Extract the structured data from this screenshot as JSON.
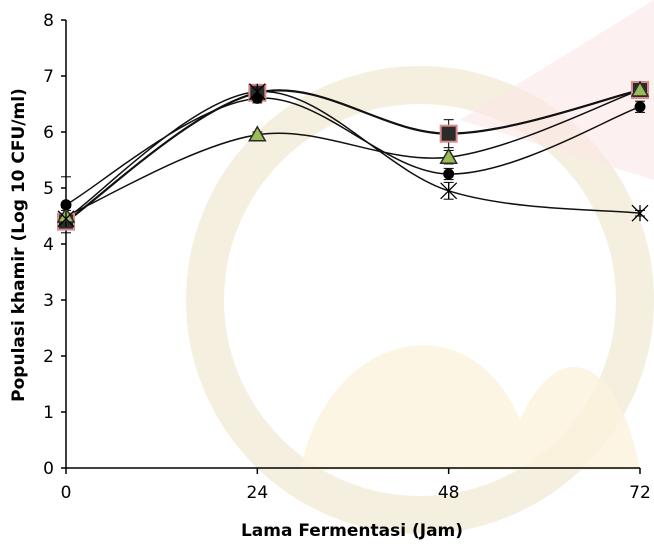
{
  "chart_data": {
    "type": "line",
    "title": "",
    "xlabel": "Lama Fermentasi (Jam)",
    "ylabel": "Populasi khamir (Log 10 CFU/ml)",
    "x": [
      0,
      24,
      48,
      72
    ],
    "xticks": [
      "0",
      "24",
      "48",
      "72"
    ],
    "yticks": [
      "0",
      "1",
      "2",
      "3",
      "4",
      "5",
      "6",
      "7",
      "8"
    ],
    "xlim": [
      0,
      72
    ],
    "ylim": [
      0,
      8
    ],
    "grid": false,
    "smooth": true,
    "series": [
      {
        "marker": "square",
        "color": "#2b2b2b",
        "edge": "#d98a8a",
        "values": [
          4.4,
          6.7,
          5.97,
          6.75
        ],
        "error": [
          0.15,
          0.1,
          0.25,
          0.1
        ]
      },
      {
        "marker": "triangle",
        "color": "#9bbb59",
        "edge": "#2b2b2b",
        "values": [
          4.5,
          5.95,
          5.55,
          6.75
        ],
        "error": [
          0.1,
          0.05,
          0.12,
          0.05
        ]
      },
      {
        "marker": "circle",
        "color": "#000000",
        "edge": "#000000",
        "values": [
          4.7,
          6.6,
          5.25,
          6.45
        ],
        "error": [
          0.5,
          0.08,
          0.1,
          0.1
        ]
      },
      {
        "marker": "asterisk",
        "color": "#000000",
        "edge": "#000000",
        "values": [
          4.45,
          6.72,
          4.95,
          4.55
        ],
        "error": [
          0.2,
          0.08,
          0.15,
          0.05
        ]
      }
    ]
  }
}
